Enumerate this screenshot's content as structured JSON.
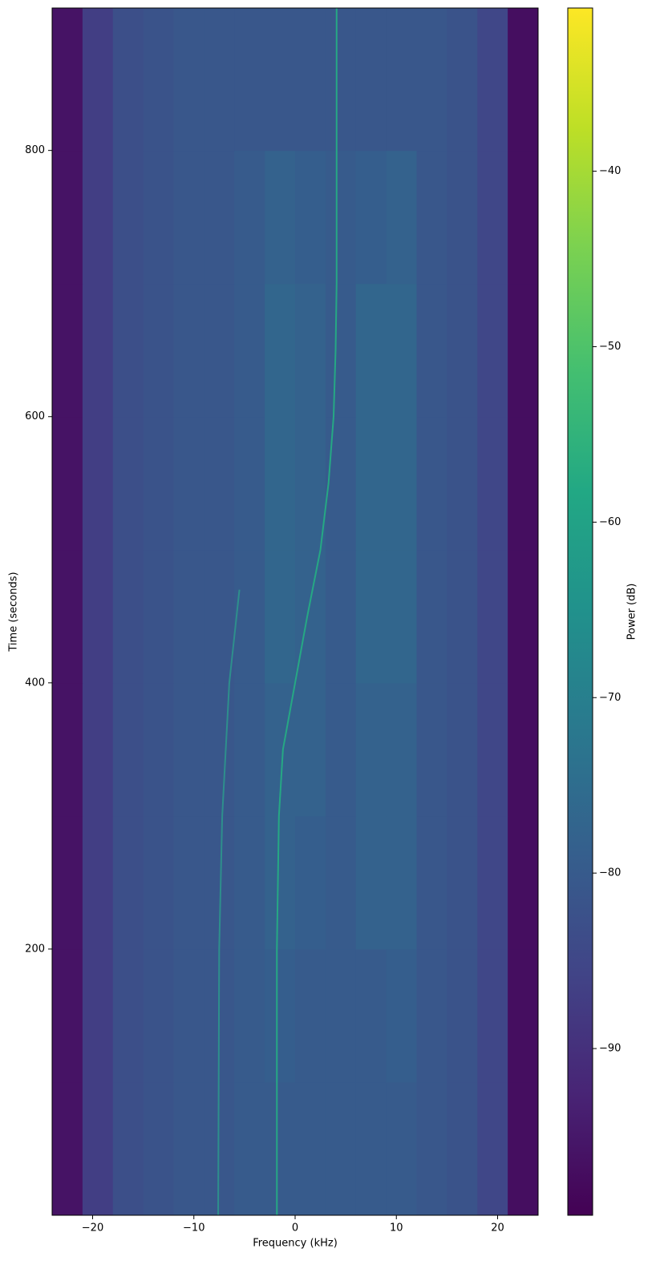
{
  "chart_data": {
    "type": "heatmap",
    "xlabel": "Frequency (kHz)",
    "ylabel": "Time (seconds)",
    "colorbar_label": "Power (dB)",
    "colormap": "viridis",
    "xlim": [
      -24,
      24
    ],
    "ylim": [
      0,
      907
    ],
    "clim": [
      -99.5,
      -30.7
    ],
    "xticks": [
      {
        "value": -20,
        "label": "−20"
      },
      {
        "value": -10,
        "label": "−10"
      },
      0,
      10,
      20
    ],
    "yticks": [
      200,
      400,
      600,
      800
    ],
    "cticks": [
      {
        "value": -90,
        "label": "−90"
      },
      {
        "value": -80,
        "label": "−80"
      },
      {
        "value": -70,
        "label": "−70"
      },
      {
        "value": -60,
        "label": "−60"
      },
      {
        "value": -50,
        "label": "−50"
      },
      {
        "value": -40,
        "label": "−40"
      }
    ],
    "x_bins": [
      -24,
      -21,
      -18,
      -15,
      -12,
      -9,
      -6,
      -3,
      0,
      3,
      6,
      9,
      12,
      15,
      18,
      21,
      24
    ],
    "y_bins": [
      0,
      100,
      200,
      300,
      400,
      500,
      600,
      700,
      800,
      907
    ],
    "z": [
      [
        -96,
        -87,
        -83,
        -82,
        -81,
        -81,
        -80,
        -80,
        -80,
        -80,
        -80,
        -80,
        -81,
        -82,
        -85,
        -97
      ],
      [
        -96,
        -87,
        -83,
        -82,
        -81,
        -81,
        -80,
        -79,
        -80,
        -80,
        -80,
        -79,
        -81,
        -82,
        -85,
        -97
      ],
      [
        -96,
        -87,
        -83,
        -82,
        -81,
        -81,
        -80,
        -78,
        -79,
        -80,
        -78,
        -78,
        -81,
        -82,
        -85,
        -97
      ],
      [
        -96,
        -87,
        -83,
        -82,
        -81,
        -81,
        -80,
        -78,
        -78,
        -80,
        -78,
        -78,
        -81,
        -82,
        -85,
        -97
      ],
      [
        -96,
        -87,
        -83,
        -82,
        -81,
        -81,
        -80,
        -77,
        -78,
        -80,
        -77,
        -77,
        -81,
        -82,
        -85,
        -97
      ],
      [
        -96,
        -87,
        -83,
        -82,
        -81,
        -81,
        -80,
        -77,
        -78,
        -80,
        -77,
        -77,
        -81,
        -82,
        -85,
        -97
      ],
      [
        -96,
        -87,
        -83,
        -82,
        -81,
        -81,
        -80,
        -77,
        -78,
        -80,
        -77,
        -77,
        -81,
        -82,
        -85,
        -97
      ],
      [
        -96,
        -87,
        -83,
        -82,
        -81,
        -81,
        -80,
        -78,
        -79,
        -80,
        -79,
        -78,
        -81,
        -82,
        -85,
        -97
      ],
      [
        -96,
        -87,
        -83,
        -82,
        -81,
        -81,
        -81,
        -81,
        -81,
        -81,
        -81,
        -81,
        -81,
        -82,
        -85,
        -97
      ]
    ],
    "traces": [
      {
        "color": "#26a884",
        "x": [
          -1.8,
          -1.8,
          -1.6,
          -1.2,
          0,
          1.2,
          2.5,
          3.3,
          3.8,
          4.0,
          4.1,
          4.1
        ],
        "y": [
          0,
          200,
          300,
          350,
          400,
          450,
          500,
          550,
          600,
          650,
          700,
          907
        ]
      },
      {
        "color": "#2e8f8c",
        "x": [
          -7.6,
          -7.5,
          -7.2,
          -6.5,
          -5.5
        ],
        "y": [
          0,
          200,
          300,
          400,
          470
        ]
      }
    ]
  }
}
